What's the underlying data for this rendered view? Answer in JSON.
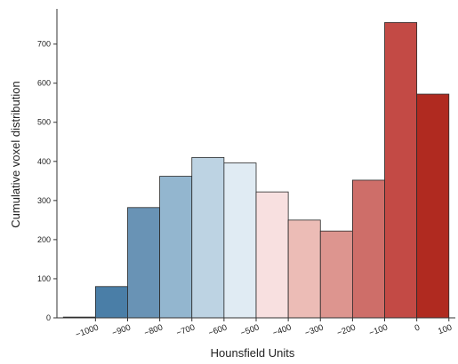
{
  "chart_data": {
    "type": "bar",
    "xlabel": "Hounsfield Units",
    "ylabel": "Cumulative voxel distribution",
    "bin_edges": [
      -1100,
      -1000,
      -900,
      -800,
      -700,
      -600,
      -500,
      -400,
      -300,
      -200,
      -100,
      0,
      100
    ],
    "x_tick_values": [
      -1000,
      -900,
      -800,
      -700,
      -600,
      -500,
      -400,
      -300,
      -200,
      -100,
      0,
      100
    ],
    "x_tick_labels": [
      "−1000",
      "−900",
      "−800",
      "−700",
      "−600",
      "−500",
      "−400",
      "−300",
      "−200",
      "−100",
      "0",
      "100"
    ],
    "values": [
      2,
      80,
      282,
      362,
      410,
      396,
      322,
      250,
      222,
      352,
      755,
      572
    ],
    "colors": [
      "#3a6f96",
      "#4a7ea7",
      "#6993b5",
      "#93b6cf",
      "#bdd3e3",
      "#e0ebf3",
      "#f8e0e0",
      "#ecbcb6",
      "#dd958f",
      "#ce6e69",
      "#c34a45",
      "#b02a20"
    ],
    "ylim": [
      0,
      790
    ],
    "y_ticks": [
      0,
      100,
      200,
      300,
      400,
      500,
      600,
      700
    ],
    "grid": false,
    "legend": "none"
  }
}
